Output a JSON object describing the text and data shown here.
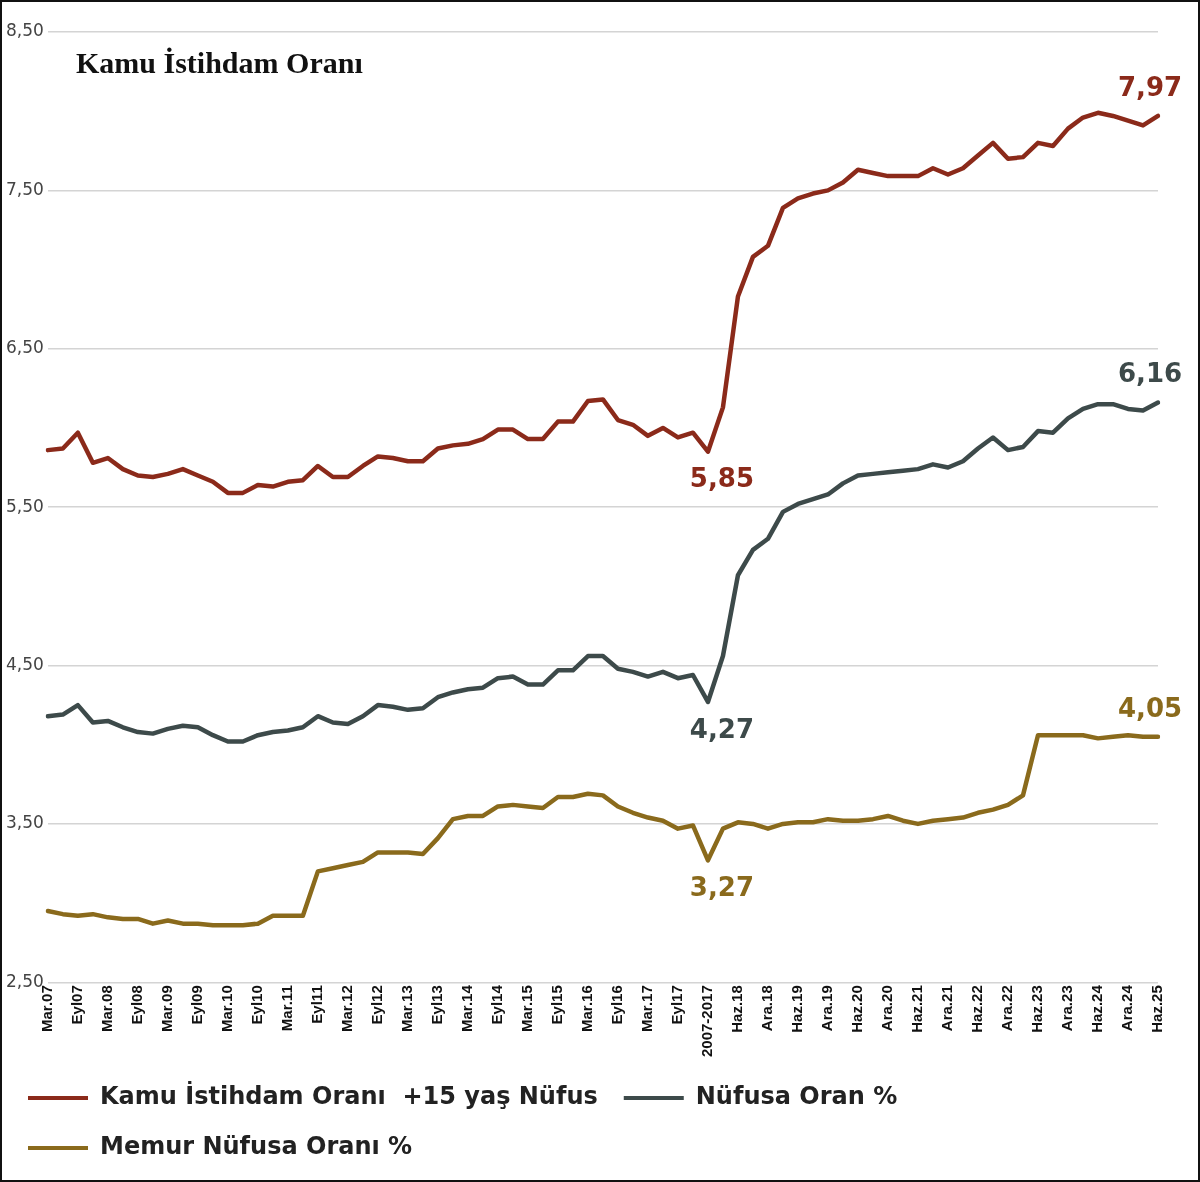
{
  "chart_data": {
    "type": "line",
    "title": "Kamu İstihdam Oranı",
    "categories": [
      "Mar.07",
      null,
      "Eyl07",
      null,
      "Mar.08",
      null,
      "Eyl08",
      null,
      "Mar.09",
      null,
      "Eyl09",
      null,
      "Mar.10",
      null,
      "Eyl10",
      null,
      "Mar.11",
      null,
      "Eyl11",
      null,
      "Mar.12",
      null,
      "Eyl12",
      null,
      "Mar.13",
      null,
      "Eyl13",
      null,
      "Mar.14",
      null,
      "Eyl14",
      null,
      "Mar.15",
      null,
      "Eyl15",
      null,
      "Mar.16",
      null,
      "Eyl16",
      null,
      "Mar.17",
      null,
      "Eyl17",
      null,
      "2007-2017",
      null,
      "Haz.18",
      null,
      "Ara.18",
      null,
      "Haz.19",
      null,
      "Ara.19",
      null,
      "Haz.20",
      null,
      "Ara.20",
      null,
      "Haz.21",
      null,
      "Ara.21",
      null,
      "Haz.22",
      null,
      "Ara.22",
      null,
      "Haz.23",
      null,
      "Ara.23",
      null,
      "Haz.24",
      null,
      "Ara.24",
      null,
      "Haz.25"
    ],
    "series": [
      {
        "name": "Kamu İstihdam Oranı  +15 yaş Nüfus",
        "color": "#8b2a1a",
        "values": [
          5.86,
          5.87,
          5.97,
          5.78,
          5.81,
          5.74,
          5.7,
          5.69,
          5.71,
          5.74,
          5.7,
          5.66,
          5.59,
          5.59,
          5.64,
          5.63,
          5.66,
          5.67,
          5.76,
          5.69,
          5.69,
          5.76,
          5.82,
          5.81,
          5.79,
          5.79,
          5.87,
          5.89,
          5.9,
          5.93,
          5.99,
          5.99,
          5.93,
          5.93,
          6.04,
          6.04,
          6.17,
          6.18,
          6.05,
          6.02,
          5.95,
          6.0,
          5.94,
          5.97,
          5.85,
          6.13,
          6.83,
          7.08,
          7.15,
          7.39,
          7.45,
          7.48,
          7.5,
          7.55,
          7.63,
          7.61,
          7.59,
          7.59,
          7.59,
          7.64,
          7.6,
          7.64,
          7.72,
          7.8,
          7.7,
          7.71,
          7.8,
          7.78,
          7.89,
          7.96,
          7.99,
          7.97,
          7.94,
          7.91,
          7.97
        ],
        "value_labels": [
          null,
          null,
          null,
          null,
          null,
          null,
          null,
          null,
          null,
          null,
          null,
          null,
          null,
          null,
          null,
          null,
          null,
          null,
          null,
          null,
          null,
          null,
          null,
          null,
          null,
          null,
          null,
          null,
          null,
          null,
          null,
          null,
          null,
          null,
          null,
          null,
          null,
          null,
          null,
          null,
          null,
          null,
          null,
          null,
          "5,85",
          null,
          null,
          null,
          null,
          null,
          null,
          null,
          null,
          null,
          null,
          null,
          null,
          null,
          null,
          null,
          null,
          null,
          null,
          null,
          null,
          null,
          null,
          null,
          null,
          null,
          null,
          null,
          null,
          null,
          "7,97"
        ]
      },
      {
        "name": "Nüfusa Oran %",
        "color": "#3d4a4a",
        "values": [
          4.18,
          4.19,
          4.25,
          4.14,
          4.15,
          4.11,
          4.08,
          4.07,
          4.1,
          4.12,
          4.11,
          4.06,
          4.02,
          4.02,
          4.06,
          4.08,
          4.09,
          4.11,
          4.18,
          4.14,
          4.13,
          4.18,
          4.25,
          4.24,
          4.22,
          4.23,
          4.3,
          4.33,
          4.35,
          4.36,
          4.42,
          4.43,
          4.38,
          4.38,
          4.47,
          4.47,
          4.56,
          4.56,
          4.48,
          4.46,
          4.43,
          4.46,
          4.42,
          4.44,
          4.27,
          4.56,
          5.07,
          5.23,
          5.3,
          5.47,
          5.52,
          5.55,
          5.58,
          5.65,
          5.7,
          5.71,
          5.72,
          5.73,
          5.74,
          5.77,
          5.75,
          5.79,
          5.87,
          5.94,
          5.86,
          5.88,
          5.98,
          5.97,
          6.06,
          6.12,
          6.15,
          6.15,
          6.12,
          6.11,
          6.16
        ],
        "value_labels": [
          null,
          null,
          null,
          null,
          null,
          null,
          null,
          null,
          null,
          null,
          null,
          null,
          null,
          null,
          null,
          null,
          null,
          null,
          null,
          null,
          null,
          null,
          null,
          null,
          null,
          null,
          null,
          null,
          null,
          null,
          null,
          null,
          null,
          null,
          null,
          null,
          null,
          null,
          null,
          null,
          null,
          null,
          null,
          null,
          "4,27",
          null,
          null,
          null,
          null,
          null,
          null,
          null,
          null,
          null,
          null,
          null,
          null,
          null,
          null,
          null,
          null,
          null,
          null,
          null,
          null,
          null,
          null,
          null,
          null,
          null,
          null,
          null,
          null,
          null,
          "6,16"
        ]
      },
      {
        "name": "Memur Nüfusa Oranı %",
        "color": "#8a6a1c",
        "values": [
          2.95,
          2.93,
          2.92,
          2.93,
          2.91,
          2.9,
          2.9,
          2.87,
          2.89,
          2.87,
          2.87,
          2.86,
          2.86,
          2.86,
          2.87,
          2.92,
          2.92,
          2.92,
          3.2,
          3.22,
          3.24,
          3.26,
          3.32,
          3.32,
          3.32,
          3.31,
          3.41,
          3.53,
          3.55,
          3.55,
          3.61,
          3.62,
          3.61,
          3.6,
          3.67,
          3.67,
          3.69,
          3.68,
          3.61,
          3.57,
          3.54,
          3.52,
          3.47,
          3.49,
          3.27,
          3.47,
          3.51,
          3.5,
          3.47,
          3.5,
          3.51,
          3.51,
          3.53,
          3.52,
          3.52,
          3.53,
          3.55,
          3.52,
          3.5,
          3.52,
          3.53,
          3.54,
          3.57,
          3.59,
          3.62,
          3.68,
          4.06,
          4.06,
          4.06,
          4.06,
          4.04,
          4.05,
          4.06,
          4.05,
          4.05
        ],
        "value_labels": [
          null,
          null,
          null,
          null,
          null,
          null,
          null,
          null,
          null,
          null,
          null,
          null,
          null,
          null,
          null,
          null,
          null,
          null,
          null,
          null,
          null,
          null,
          null,
          null,
          null,
          null,
          null,
          null,
          null,
          null,
          null,
          null,
          null,
          null,
          null,
          null,
          null,
          null,
          null,
          null,
          null,
          null,
          null,
          null,
          "3,27",
          null,
          null,
          null,
          null,
          null,
          null,
          null,
          null,
          null,
          null,
          null,
          null,
          null,
          null,
          null,
          null,
          null,
          null,
          null,
          null,
          null,
          null,
          null,
          null,
          null,
          null,
          null,
          null,
          null,
          "4,05"
        ]
      }
    ],
    "ylim": [
      2.5,
      8.5
    ],
    "yticks": [
      {
        "value": 2.5,
        "label": "2,50"
      },
      {
        "value": 3.5,
        "label": "3,50"
      },
      {
        "value": 4.5,
        "label": "4,50"
      },
      {
        "value": 5.5,
        "label": "5,50"
      },
      {
        "value": 6.5,
        "label": "6,50"
      },
      {
        "value": 7.5,
        "label": "7,50"
      },
      {
        "value": 8.5,
        "label": "8,50"
      }
    ],
    "grid": "y",
    "legend": "bottom",
    "marker": "none",
    "line_style": "solid"
  }
}
